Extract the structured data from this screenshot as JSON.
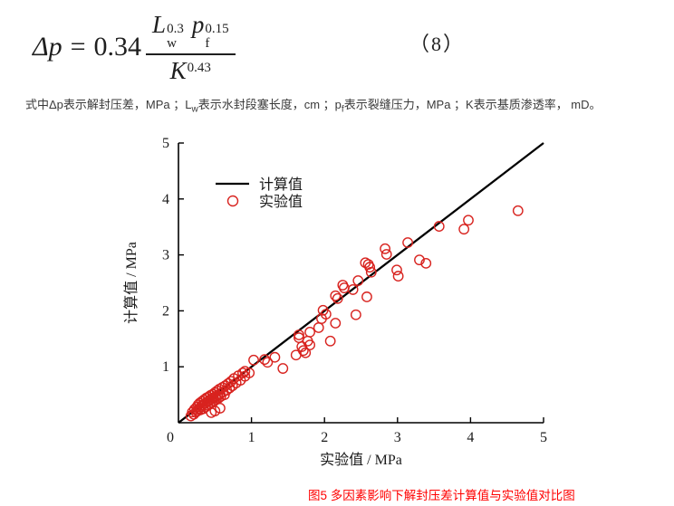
{
  "equation": {
    "lhs": "Δp",
    "equals": "=",
    "coefficient": "0.34",
    "numerator": [
      {
        "base": "L",
        "sub": "w",
        "sup": "0.3"
      },
      {
        "base": "p",
        "sub": "f",
        "sup": "0.15"
      }
    ],
    "denominator": {
      "base": "K",
      "sup": "0.43"
    },
    "number": "（8）"
  },
  "description": {
    "segments": [
      {
        "text": "式中Δp表示解封压差，MPa ；L"
      },
      {
        "text": "w",
        "style": "sub"
      },
      {
        "text": "表示水封段塞长度，cm ；p"
      },
      {
        "text": "f",
        "style": "sub"
      },
      {
        "text": "表示裂缝压力，MPa ；K表示基质渗透率， mD。"
      }
    ]
  },
  "chart_data": {
    "type": "scatter",
    "xlabel": "实验值 / MPa",
    "ylabel": "计算值 / MPa",
    "xlim": [
      0,
      5
    ],
    "ylim": [
      0,
      5
    ],
    "xticks": [
      0,
      1,
      2,
      3,
      4,
      5
    ],
    "yticks": [
      1,
      2,
      3,
      4,
      5
    ],
    "grid": false,
    "legend_position": "upper-left-inside",
    "legend": [
      {
        "label": "计算值",
        "marker": "line",
        "color": "#000000"
      },
      {
        "label": "实验值",
        "marker": "circle",
        "color": "#d8231f"
      }
    ],
    "line": {
      "x": [
        0,
        5
      ],
      "y": [
        0,
        5
      ],
      "color": "#000000"
    },
    "point_color": "#d8231f",
    "points": [
      [
        0.17,
        0.12
      ],
      [
        0.19,
        0.19
      ],
      [
        0.21,
        0.15
      ],
      [
        0.22,
        0.24
      ],
      [
        0.24,
        0.19
      ],
      [
        0.25,
        0.28
      ],
      [
        0.26,
        0.21
      ],
      [
        0.27,
        0.32
      ],
      [
        0.28,
        0.25
      ],
      [
        0.29,
        0.35
      ],
      [
        0.3,
        0.23
      ],
      [
        0.31,
        0.29
      ],
      [
        0.32,
        0.38
      ],
      [
        0.33,
        0.32
      ],
      [
        0.34,
        0.25
      ],
      [
        0.35,
        0.41
      ],
      [
        0.36,
        0.34
      ],
      [
        0.37,
        0.28
      ],
      [
        0.38,
        0.44
      ],
      [
        0.39,
        0.37
      ],
      [
        0.4,
        0.31
      ],
      [
        0.41,
        0.46
      ],
      [
        0.42,
        0.39
      ],
      [
        0.43,
        0.33
      ],
      [
        0.44,
        0.49
      ],
      [
        0.45,
        0.42
      ],
      [
        0.46,
        0.36
      ],
      [
        0.47,
        0.51
      ],
      [
        0.48,
        0.44
      ],
      [
        0.49,
        0.39
      ],
      [
        0.5,
        0.54
      ],
      [
        0.51,
        0.46
      ],
      [
        0.52,
        0.42
      ],
      [
        0.53,
        0.57
      ],
      [
        0.54,
        0.49
      ],
      [
        0.55,
        0.44
      ],
      [
        0.56,
        0.6
      ],
      [
        0.57,
        0.52
      ],
      [
        0.58,
        0.47
      ],
      [
        0.6,
        0.63
      ],
      [
        0.61,
        0.55
      ],
      [
        0.63,
        0.5
      ],
      [
        0.64,
        0.66
      ],
      [
        0.66,
        0.58
      ],
      [
        0.68,
        0.7
      ],
      [
        0.7,
        0.62
      ],
      [
        0.72,
        0.74
      ],
      [
        0.74,
        0.66
      ],
      [
        0.76,
        0.79
      ],
      [
        0.79,
        0.71
      ],
      [
        0.82,
        0.84
      ],
      [
        0.85,
        0.76
      ],
      [
        0.88,
        0.89
      ],
      [
        0.91,
        0.83
      ],
      [
        0.5,
        0.21
      ],
      [
        0.57,
        0.26
      ],
      [
        0.45,
        0.18
      ],
      [
        0.91,
        0.92
      ],
      [
        0.97,
        0.89
      ],
      [
        1.03,
        1.12
      ],
      [
        1.18,
        1.13
      ],
      [
        1.22,
        1.08
      ],
      [
        1.32,
        1.17
      ],
      [
        1.43,
        0.97
      ],
      [
        1.61,
        1.21
      ],
      [
        1.65,
        1.52
      ],
      [
        1.65,
        1.57
      ],
      [
        1.69,
        1.36
      ],
      [
        1.71,
        1.29
      ],
      [
        1.74,
        1.25
      ],
      [
        1.77,
        1.46
      ],
      [
        1.8,
        1.39
      ],
      [
        1.8,
        1.62
      ],
      [
        1.92,
        1.7
      ],
      [
        1.96,
        1.86
      ],
      [
        1.98,
        2.01
      ],
      [
        2.02,
        1.94
      ],
      [
        2.08,
        1.46
      ],
      [
        2.15,
        1.78
      ],
      [
        2.15,
        2.27
      ],
      [
        2.18,
        2.22
      ],
      [
        2.25,
        2.46
      ],
      [
        2.27,
        2.41
      ],
      [
        2.39,
        2.38
      ],
      [
        2.43,
        1.93
      ],
      [
        2.46,
        2.54
      ],
      [
        2.56,
        2.86
      ],
      [
        2.58,
        2.25
      ],
      [
        2.6,
        2.83
      ],
      [
        2.62,
        2.78
      ],
      [
        2.64,
        2.69
      ],
      [
        2.83,
        3.11
      ],
      [
        2.85,
        3.01
      ],
      [
        2.99,
        2.73
      ],
      [
        3.01,
        2.62
      ],
      [
        3.14,
        3.22
      ],
      [
        3.3,
        2.91
      ],
      [
        3.39,
        2.85
      ],
      [
        3.57,
        3.51
      ],
      [
        3.91,
        3.46
      ],
      [
        3.97,
        3.62
      ],
      [
        4.65,
        3.79
      ]
    ]
  },
  "caption": {
    "text": "图5 多因素影响下解封压差计算值与实验值对比图",
    "color": "#ff0000"
  }
}
